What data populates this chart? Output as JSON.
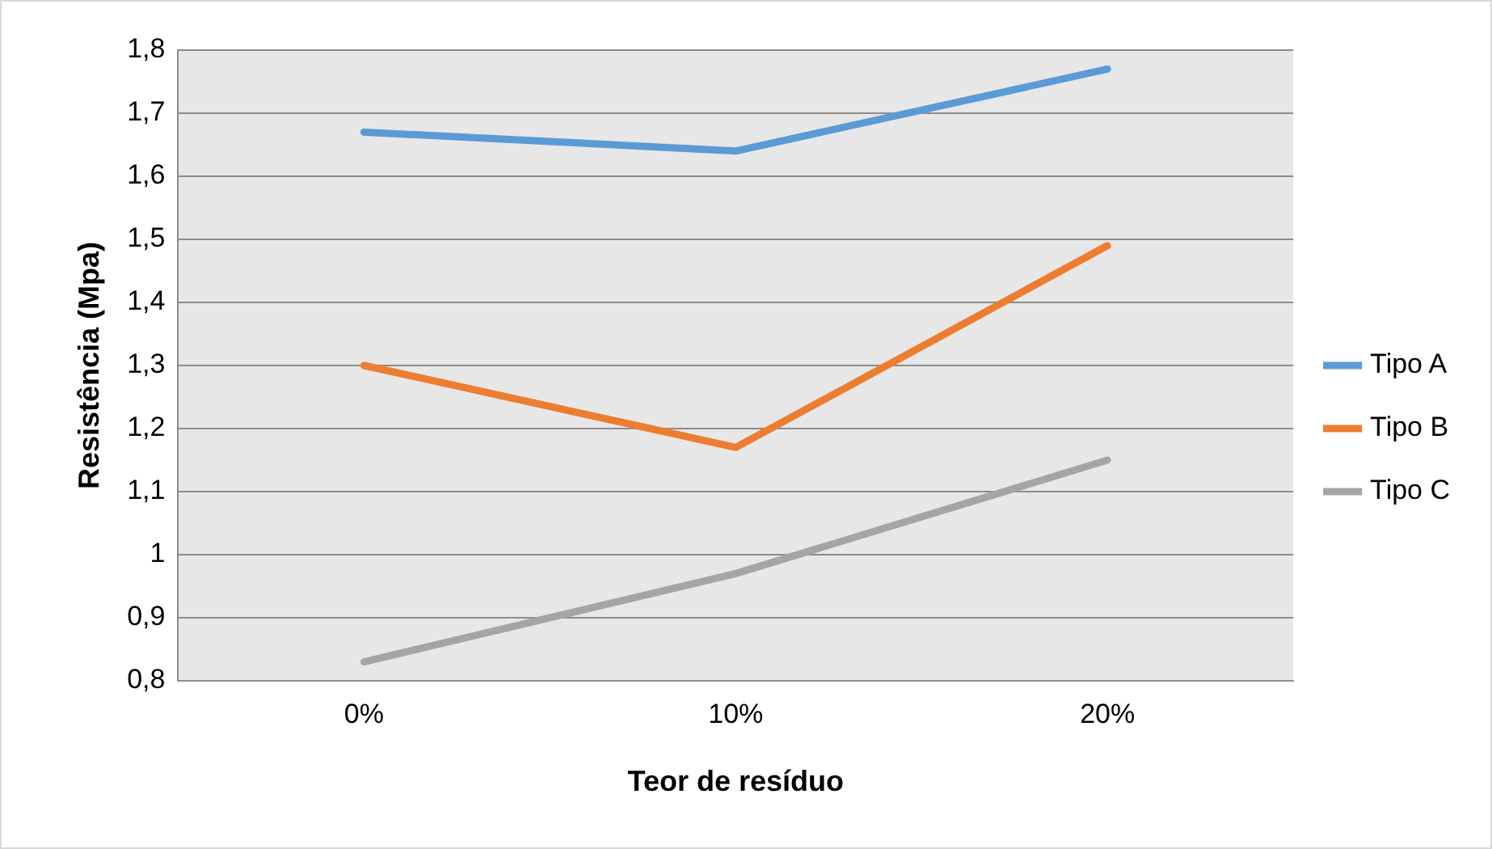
{
  "chart_data": {
    "type": "line",
    "xlabel": "Teor de resíduo",
    "ylabel": "Resistência (Mpa)",
    "categories": [
      "0%",
      "10%",
      "20%"
    ],
    "series": [
      {
        "name": "Tipo A",
        "color": "#5b9bd5",
        "values": [
          1.67,
          1.64,
          1.77
        ]
      },
      {
        "name": "Tipo B",
        "color": "#ed7d31",
        "values": [
          1.3,
          1.17,
          1.49
        ]
      },
      {
        "name": "Tipo C",
        "color": "#a5a5a5",
        "values": [
          0.83,
          0.97,
          1.15
        ]
      }
    ],
    "ylim": [
      0.8,
      1.8
    ],
    "yticks": [
      {
        "value": 0.8,
        "label": "0,8"
      },
      {
        "value": 0.9,
        "label": "0,9"
      },
      1,
      {
        "value": 1.1,
        "label": "1,1"
      },
      {
        "value": 1.2,
        "label": "1,2"
      },
      {
        "value": 1.3,
        "label": "1,3"
      },
      {
        "value": 1.4,
        "label": "1,4"
      },
      {
        "value": 1.5,
        "label": "1,5"
      },
      {
        "value": 1.6,
        "label": "1,6"
      },
      {
        "value": 1.7,
        "label": "1,7"
      },
      {
        "value": 1.8,
        "label": "1,8"
      }
    ],
    "grid": "y",
    "legend": "right",
    "marker": "none",
    "line_style": "solid"
  }
}
